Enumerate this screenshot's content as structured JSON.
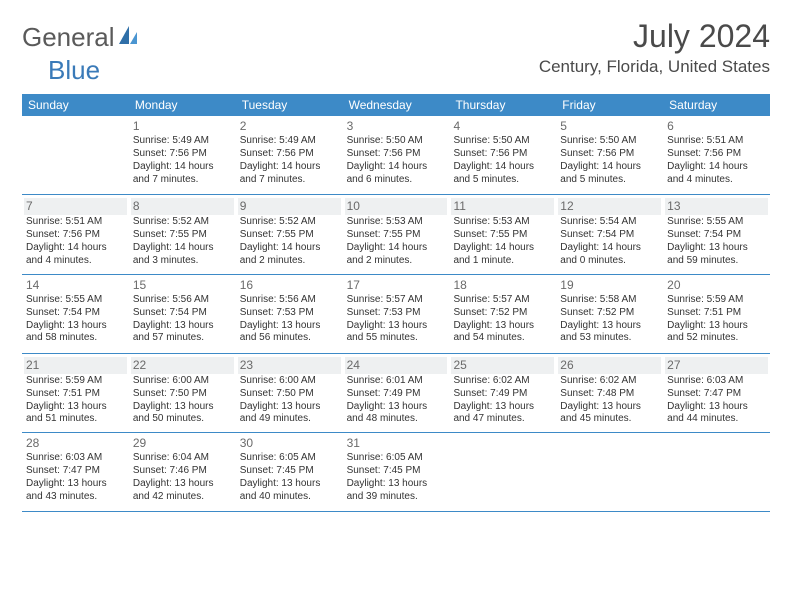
{
  "brand": {
    "word1": "General",
    "word2": "Blue"
  },
  "title": "July 2024",
  "location": "Century, Florida, United States",
  "colors": {
    "header_bg": "#3d8ac7",
    "header_text": "#ffffff",
    "rule": "#3d8ac7",
    "logo_gray": "#5a5a5a",
    "logo_blue": "#3a7ab8",
    "daynum": "#6a6a6a",
    "alt_bg": "#eef0f1"
  },
  "day_names": [
    "Sunday",
    "Monday",
    "Tuesday",
    "Wednesday",
    "Thursday",
    "Friday",
    "Saturday"
  ],
  "weeks": [
    [
      {
        "n": "",
        "sr": "",
        "ss": "",
        "dl": ""
      },
      {
        "n": "1",
        "sr": "Sunrise: 5:49 AM",
        "ss": "Sunset: 7:56 PM",
        "dl": "Daylight: 14 hours and 7 minutes."
      },
      {
        "n": "2",
        "sr": "Sunrise: 5:49 AM",
        "ss": "Sunset: 7:56 PM",
        "dl": "Daylight: 14 hours and 7 minutes."
      },
      {
        "n": "3",
        "sr": "Sunrise: 5:50 AM",
        "ss": "Sunset: 7:56 PM",
        "dl": "Daylight: 14 hours and 6 minutes."
      },
      {
        "n": "4",
        "sr": "Sunrise: 5:50 AM",
        "ss": "Sunset: 7:56 PM",
        "dl": "Daylight: 14 hours and 5 minutes."
      },
      {
        "n": "5",
        "sr": "Sunrise: 5:50 AM",
        "ss": "Sunset: 7:56 PM",
        "dl": "Daylight: 14 hours and 5 minutes."
      },
      {
        "n": "6",
        "sr": "Sunrise: 5:51 AM",
        "ss": "Sunset: 7:56 PM",
        "dl": "Daylight: 14 hours and 4 minutes."
      }
    ],
    [
      {
        "n": "7",
        "sr": "Sunrise: 5:51 AM",
        "ss": "Sunset: 7:56 PM",
        "dl": "Daylight: 14 hours and 4 minutes."
      },
      {
        "n": "8",
        "sr": "Sunrise: 5:52 AM",
        "ss": "Sunset: 7:55 PM",
        "dl": "Daylight: 14 hours and 3 minutes."
      },
      {
        "n": "9",
        "sr": "Sunrise: 5:52 AM",
        "ss": "Sunset: 7:55 PM",
        "dl": "Daylight: 14 hours and 2 minutes."
      },
      {
        "n": "10",
        "sr": "Sunrise: 5:53 AM",
        "ss": "Sunset: 7:55 PM",
        "dl": "Daylight: 14 hours and 2 minutes."
      },
      {
        "n": "11",
        "sr": "Sunrise: 5:53 AM",
        "ss": "Sunset: 7:55 PM",
        "dl": "Daylight: 14 hours and 1 minute."
      },
      {
        "n": "12",
        "sr": "Sunrise: 5:54 AM",
        "ss": "Sunset: 7:54 PM",
        "dl": "Daylight: 14 hours and 0 minutes."
      },
      {
        "n": "13",
        "sr": "Sunrise: 5:55 AM",
        "ss": "Sunset: 7:54 PM",
        "dl": "Daylight: 13 hours and 59 minutes."
      }
    ],
    [
      {
        "n": "14",
        "sr": "Sunrise: 5:55 AM",
        "ss": "Sunset: 7:54 PM",
        "dl": "Daylight: 13 hours and 58 minutes."
      },
      {
        "n": "15",
        "sr": "Sunrise: 5:56 AM",
        "ss": "Sunset: 7:54 PM",
        "dl": "Daylight: 13 hours and 57 minutes."
      },
      {
        "n": "16",
        "sr": "Sunrise: 5:56 AM",
        "ss": "Sunset: 7:53 PM",
        "dl": "Daylight: 13 hours and 56 minutes."
      },
      {
        "n": "17",
        "sr": "Sunrise: 5:57 AM",
        "ss": "Sunset: 7:53 PM",
        "dl": "Daylight: 13 hours and 55 minutes."
      },
      {
        "n": "18",
        "sr": "Sunrise: 5:57 AM",
        "ss": "Sunset: 7:52 PM",
        "dl": "Daylight: 13 hours and 54 minutes."
      },
      {
        "n": "19",
        "sr": "Sunrise: 5:58 AM",
        "ss": "Sunset: 7:52 PM",
        "dl": "Daylight: 13 hours and 53 minutes."
      },
      {
        "n": "20",
        "sr": "Sunrise: 5:59 AM",
        "ss": "Sunset: 7:51 PM",
        "dl": "Daylight: 13 hours and 52 minutes."
      }
    ],
    [
      {
        "n": "21",
        "sr": "Sunrise: 5:59 AM",
        "ss": "Sunset: 7:51 PM",
        "dl": "Daylight: 13 hours and 51 minutes."
      },
      {
        "n": "22",
        "sr": "Sunrise: 6:00 AM",
        "ss": "Sunset: 7:50 PM",
        "dl": "Daylight: 13 hours and 50 minutes."
      },
      {
        "n": "23",
        "sr": "Sunrise: 6:00 AM",
        "ss": "Sunset: 7:50 PM",
        "dl": "Daylight: 13 hours and 49 minutes."
      },
      {
        "n": "24",
        "sr": "Sunrise: 6:01 AM",
        "ss": "Sunset: 7:49 PM",
        "dl": "Daylight: 13 hours and 48 minutes."
      },
      {
        "n": "25",
        "sr": "Sunrise: 6:02 AM",
        "ss": "Sunset: 7:49 PM",
        "dl": "Daylight: 13 hours and 47 minutes."
      },
      {
        "n": "26",
        "sr": "Sunrise: 6:02 AM",
        "ss": "Sunset: 7:48 PM",
        "dl": "Daylight: 13 hours and 45 minutes."
      },
      {
        "n": "27",
        "sr": "Sunrise: 6:03 AM",
        "ss": "Sunset: 7:47 PM",
        "dl": "Daylight: 13 hours and 44 minutes."
      }
    ],
    [
      {
        "n": "28",
        "sr": "Sunrise: 6:03 AM",
        "ss": "Sunset: 7:47 PM",
        "dl": "Daylight: 13 hours and 43 minutes."
      },
      {
        "n": "29",
        "sr": "Sunrise: 6:04 AM",
        "ss": "Sunset: 7:46 PM",
        "dl": "Daylight: 13 hours and 42 minutes."
      },
      {
        "n": "30",
        "sr": "Sunrise: 6:05 AM",
        "ss": "Sunset: 7:45 PM",
        "dl": "Daylight: 13 hours and 40 minutes."
      },
      {
        "n": "31",
        "sr": "Sunrise: 6:05 AM",
        "ss": "Sunset: 7:45 PM",
        "dl": "Daylight: 13 hours and 39 minutes."
      },
      {
        "n": "",
        "sr": "",
        "ss": "",
        "dl": ""
      },
      {
        "n": "",
        "sr": "",
        "ss": "",
        "dl": ""
      },
      {
        "n": "",
        "sr": "",
        "ss": "",
        "dl": ""
      }
    ]
  ]
}
